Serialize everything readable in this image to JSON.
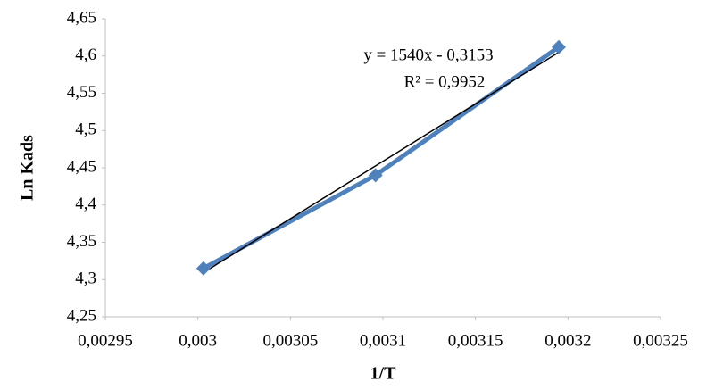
{
  "chart_data": {
    "type": "scatter",
    "x_label": "1/T",
    "y_label": "Ln Kads",
    "series": [
      {
        "x": [
          0.003003,
          0.003096,
          0.003195
        ],
        "values": [
          4.315,
          4.44,
          4.612
        ],
        "color": "#4f81bd"
      }
    ],
    "trendline": {
      "slope": 1540,
      "intercept": -0.3153,
      "color": "#000000",
      "equation": "y = 1540x - 0,3153",
      "r2": "R² = 0,9952"
    },
    "xlim": [
      0.00295,
      0.00325
    ],
    "xticks": [
      {
        "value": 0.00295,
        "label": "0,00295"
      },
      {
        "value": 0.003,
        "label": "0,003"
      },
      {
        "value": 0.00305,
        "label": "0,00305"
      },
      {
        "value": 0.0031,
        "label": "0,0031"
      },
      {
        "value": 0.00315,
        "label": "0,00315"
      },
      {
        "value": 0.0032,
        "label": "0,0032"
      },
      {
        "value": 0.00325,
        "label": "0,00325"
      }
    ],
    "ylim": [
      4.25,
      4.65
    ],
    "yticks": [
      {
        "value": 4.25,
        "label": "4,25"
      },
      {
        "value": 4.3,
        "label": "4,3"
      },
      {
        "value": 4.35,
        "label": "4,35"
      },
      {
        "value": 4.4,
        "label": "4,4"
      },
      {
        "value": 4.45,
        "label": "4,45"
      },
      {
        "value": 4.5,
        "label": "4,5"
      },
      {
        "value": 4.55,
        "label": "4,55"
      },
      {
        "value": 4.6,
        "label": "4,6"
      },
      {
        "value": 4.65,
        "label": "4,65"
      }
    ],
    "grid": false
  }
}
